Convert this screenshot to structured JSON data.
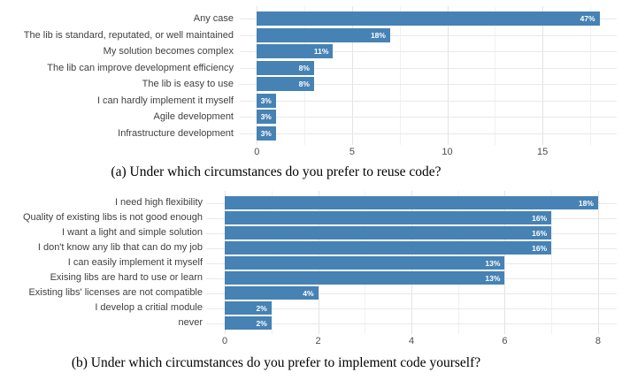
{
  "chart_data": [
    {
      "type": "bar",
      "orientation": "horizontal",
      "caption": "(a) Under which circumstances do you prefer to reuse code?",
      "categories": [
        "Any case",
        "The lib is standard, reputated, or well maintained",
        "My solution becomes complex",
        "The lib can improve development efficiency",
        "The lib is easy to use",
        "I can hardly implement it myself",
        "Agile development",
        "Infrastructure development"
      ],
      "values": [
        18,
        7,
        4,
        3,
        3,
        1,
        1,
        1
      ],
      "bar_labels": [
        "47%",
        "18%",
        "11%",
        "8%",
        "8%",
        "3%",
        "3%",
        "3%"
      ],
      "x_ticks": [
        0,
        5,
        10,
        15
      ],
      "xlim": [
        -0.9,
        18.9
      ],
      "xlabel": "",
      "ylabel": "",
      "grid": true,
      "legend": false,
      "bar_color": "#4682B4",
      "label_text_color": "#ffffff"
    },
    {
      "type": "bar",
      "orientation": "horizontal",
      "caption": "(b) Under which circumstances do you prefer to implement code yourself?",
      "categories": [
        "I need high flexibility",
        "Quality of existing libs is not good enough",
        "I want a light and simple solution",
        "I don't know any lib that can do my job",
        "I can easily implement it myself",
        "Exising libs are hard to use or learn",
        "Existing libs' licenses are not compatible",
        "I develop a critial module",
        "never"
      ],
      "values": [
        8,
        7,
        7,
        7,
        6,
        6,
        2,
        1,
        1
      ],
      "bar_labels": [
        "18%",
        "16%",
        "16%",
        "16%",
        "13%",
        "13%",
        "4%",
        "2%",
        "2%"
      ],
      "x_ticks": [
        0,
        2,
        4,
        6,
        8
      ],
      "xlim": [
        -0.4,
        8.4
      ],
      "xlabel": "",
      "ylabel": "",
      "grid": true,
      "legend": false,
      "bar_color": "#4682B4",
      "label_text_color": "#ffffff"
    }
  ]
}
